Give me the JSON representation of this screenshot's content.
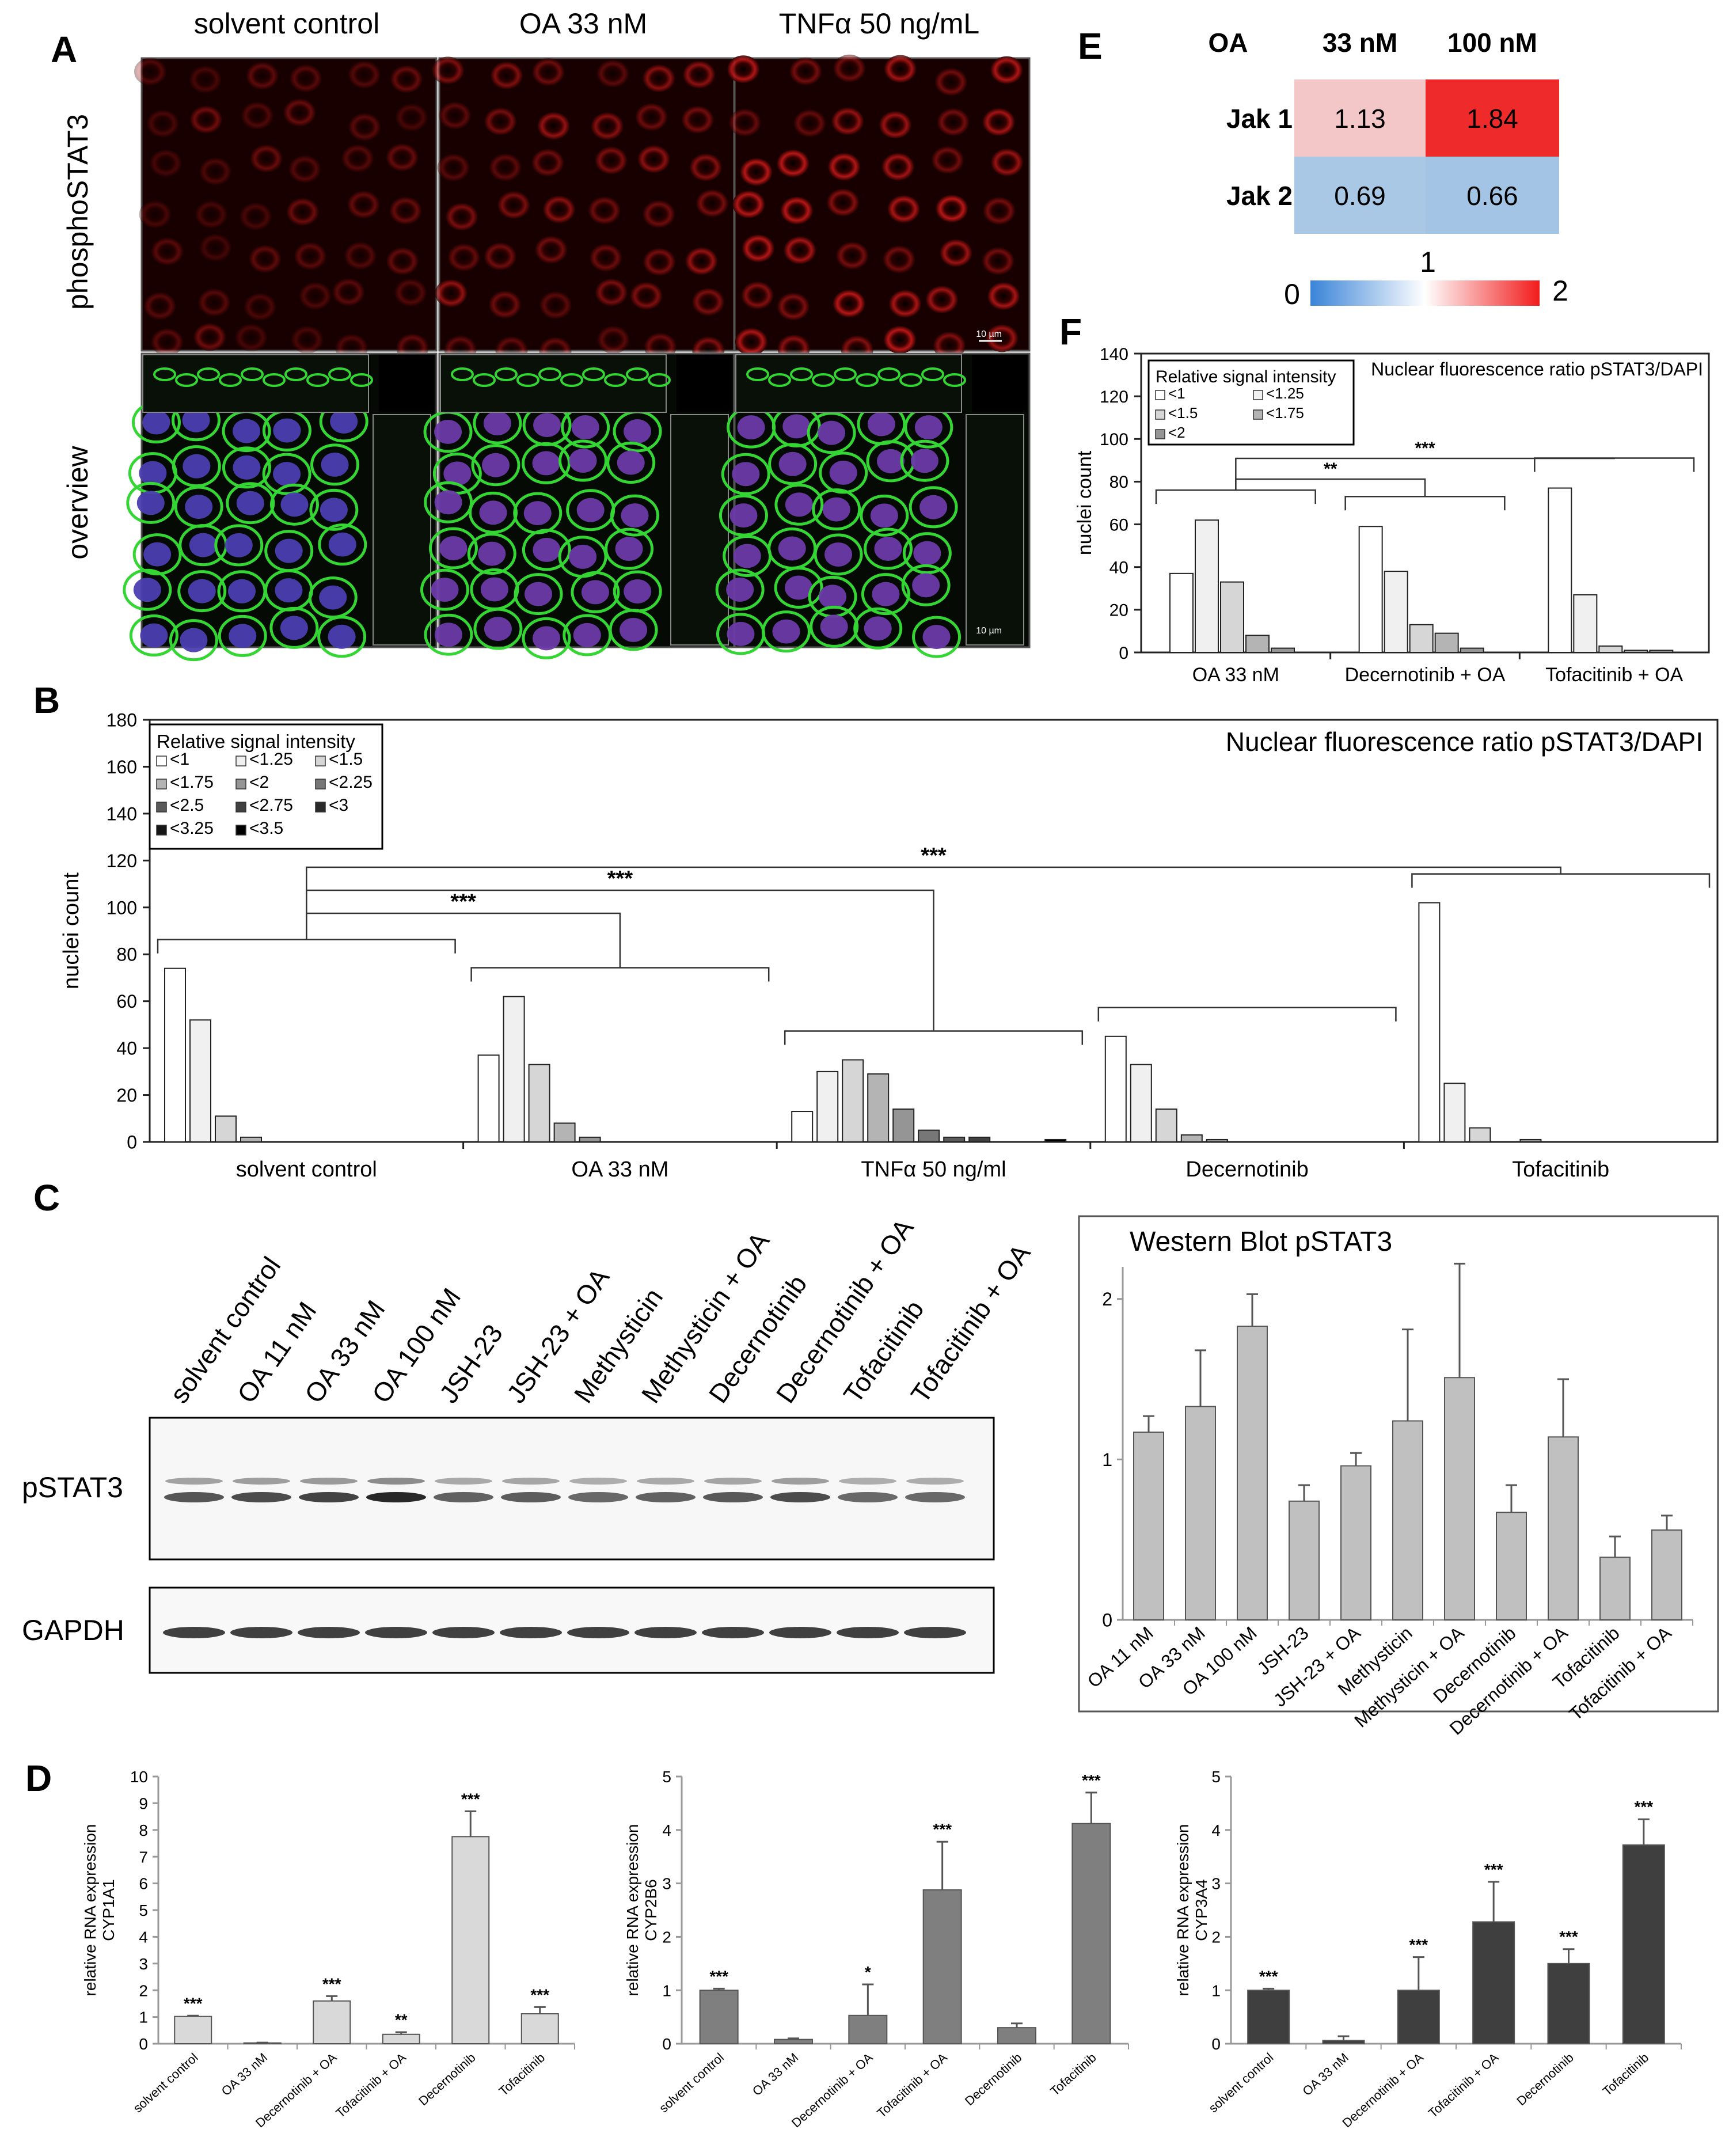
{
  "panels": {
    "A": {
      "letter": "A",
      "columns": [
        "solvent control",
        "OA 33 nM",
        "TNFα 50 ng/mL"
      ],
      "rows": [
        "phosphoSTAT3",
        "overview"
      ],
      "scale_label": "10 µm"
    },
    "E": {
      "letter": "E",
      "corner_label": "OA",
      "cols": [
        "33 nM",
        "100 nM"
      ],
      "rows": [
        "Jak 1",
        "Jak 2"
      ],
      "values": [
        [
          "1.13",
          "1.84"
        ],
        [
          "0.69",
          "0.66"
        ]
      ],
      "cell_colors": [
        [
          "#f3c6c8",
          "#ef2a2a"
        ],
        [
          "#a9c8e6",
          "#a3c4e4"
        ]
      ],
      "colorbar": {
        "min": "0",
        "mid": "1",
        "max": "2",
        "low_color": "#3a84d8",
        "mid_color": "#ffffff",
        "high_color": "#f21c1c"
      }
    },
    "B": {
      "letter": "B"
    },
    "C": {
      "letter": "C",
      "lanes": [
        "solvent control",
        "OA 11 nM",
        "OA 33 nM",
        "OA 100 nM",
        "JSH-23",
        "JSH-23 + OA",
        "Methysticin",
        "Methysticin + OA",
        "Decernotinib",
        "Decernotinib + OA",
        "Tofacitinib",
        "Tofacitinib + OA"
      ],
      "blot_labels": [
        "pSTAT3",
        "GAPDH"
      ]
    },
    "D": {
      "letter": "D"
    },
    "F": {
      "letter": "F"
    }
  },
  "chart_data": [
    {
      "id": "F",
      "type": "bar",
      "title": "Nuclear fluorescence ratio pSTAT3/DAPI",
      "ylabel": "nuclei count",
      "ylim": [
        0,
        140
      ],
      "yticks": [
        0,
        20,
        40,
        60,
        80,
        100,
        120,
        140
      ],
      "groups": [
        "OA 33 nM",
        "Decernotinib + OA",
        "Tofacitinib + OA"
      ],
      "series": [
        {
          "name": "<1",
          "color": "#ffffff",
          "values": [
            37,
            59,
            77
          ]
        },
        {
          "name": "<1.25",
          "color": "#f0f0f0",
          "values": [
            62,
            38,
            27
          ]
        },
        {
          "name": "<1.5",
          "color": "#d6d6d6",
          "values": [
            33,
            13,
            3
          ]
        },
        {
          "name": "<1.75",
          "color": "#b4b4b4",
          "values": [
            8,
            9,
            1
          ]
        },
        {
          "name": "<2",
          "color": "#959595",
          "values": [
            2,
            2,
            1
          ]
        }
      ],
      "legend": {
        "title": "Relative signal intensity",
        "placement": "top-left"
      },
      "significance": [
        {
          "label": "**",
          "from": 0,
          "to": 1
        },
        {
          "label": "***",
          "from": 0,
          "to": 2
        }
      ]
    },
    {
      "id": "B",
      "type": "bar",
      "title": "Nuclear fluorescence ratio pSTAT3/DAPI",
      "ylabel": "nuclei count",
      "ylim": [
        0,
        180
      ],
      "yticks": [
        0,
        20,
        40,
        60,
        80,
        100,
        120,
        140,
        160,
        180
      ],
      "groups": [
        "solvent control",
        "OA 33 nM",
        "TNFα 50 ng/ml",
        "Decernotinib",
        "Tofacitinib"
      ],
      "series": [
        {
          "name": "<1",
          "color": "#ffffff",
          "values": [
            74,
            37,
            13,
            45,
            102
          ]
        },
        {
          "name": "<1.25",
          "color": "#f0f0f0",
          "values": [
            52,
            62,
            30,
            33,
            25
          ]
        },
        {
          "name": "<1.5",
          "color": "#d6d6d6",
          "values": [
            11,
            33,
            35,
            14,
            6
          ]
        },
        {
          "name": "<1.75",
          "color": "#b4b4b4",
          "values": [
            2,
            8,
            29,
            3,
            0
          ]
        },
        {
          "name": "<2",
          "color": "#959595",
          "values": [
            0,
            2,
            14,
            1,
            1
          ]
        },
        {
          "name": "<2.25",
          "color": "#777777",
          "values": [
            0,
            0,
            5,
            0,
            0
          ]
        },
        {
          "name": "<2.5",
          "color": "#5a5a5a",
          "values": [
            0,
            0,
            2,
            0,
            0
          ]
        },
        {
          "name": "<2.75",
          "color": "#404040",
          "values": [
            0,
            0,
            2,
            0,
            0
          ]
        },
        {
          "name": "<3",
          "color": "#2a2a2a",
          "values": [
            0,
            0,
            0,
            0,
            0
          ]
        },
        {
          "name": "<3.25",
          "color": "#161616",
          "values": [
            0,
            0,
            0,
            0,
            0
          ]
        },
        {
          "name": "<3.5",
          "color": "#000000",
          "values": [
            0,
            0,
            1,
            0,
            0
          ]
        }
      ],
      "legend": {
        "title": "Relative signal intensity",
        "placement": "top-left"
      },
      "significance": [
        {
          "label": "***",
          "from": 0,
          "to": 1
        },
        {
          "label": "***",
          "from": 0,
          "to": 2
        },
        {
          "label": "***",
          "from": 0,
          "to": 4
        }
      ]
    },
    {
      "id": "C-quant",
      "type": "bar",
      "title": "Western Blot pSTAT3",
      "ylim": [
        0,
        2.2
      ],
      "yticks": [
        0,
        1,
        2
      ],
      "categories": [
        "OA 11 nM",
        "OA 33 nM",
        "OA 100 nM",
        "JSH-23",
        "JSH-23 + OA",
        "Methysticin",
        "Methysticin + OA",
        "Decernotinib",
        "Decernotinib + OA",
        "Tofacitinib",
        "Tofacitinib + OA"
      ],
      "values": [
        1.17,
        1.33,
        1.83,
        0.74,
        0.96,
        1.24,
        1.51,
        0.67,
        1.14,
        0.39,
        0.56
      ],
      "errors": [
        0.1,
        0.35,
        0.2,
        0.1,
        0.08,
        0.57,
        0.71,
        0.17,
        0.36,
        0.13,
        0.09
      ],
      "color": "#c0c0c0"
    },
    {
      "id": "D1",
      "type": "bar",
      "ylabel": "relative RNA expression CYP1A1",
      "ylim": [
        0,
        10
      ],
      "yticks": [
        0,
        1,
        2,
        3,
        4,
        5,
        6,
        7,
        8,
        9,
        10
      ],
      "categories": [
        "solvent control",
        "OA 33 nM",
        "Decernotinib + OA",
        "Tofacitinib + OA",
        "Decernotinib",
        "Tofacitinib"
      ],
      "values": [
        1.02,
        0.03,
        1.6,
        0.35,
        7.75,
        1.12
      ],
      "errors": [
        0.03,
        0.01,
        0.18,
        0.08,
        0.95,
        0.25
      ],
      "significance": [
        "***",
        "",
        "***",
        "**",
        "***",
        "***"
      ],
      "color": "#d9d9d9"
    },
    {
      "id": "D2",
      "type": "bar",
      "ylabel": "relative RNA expression CYP2B6",
      "ylim": [
        0,
        5
      ],
      "yticks": [
        0,
        1,
        2,
        3,
        4,
        5
      ],
      "categories": [
        "solvent control",
        "OA 33 nM",
        "Decernotinib + OA",
        "Tofacitinib + OA",
        "Decernotinib",
        "Tofacitinib"
      ],
      "values": [
        1.0,
        0.08,
        0.53,
        2.88,
        0.3,
        4.12
      ],
      "errors": [
        0.03,
        0.02,
        0.58,
        0.9,
        0.08,
        0.58
      ],
      "significance": [
        "***",
        "",
        "*",
        "***",
        "",
        "***"
      ],
      "color": "#7f7f7f"
    },
    {
      "id": "D3",
      "type": "bar",
      "ylabel": "relative RNA expression CYP3A4",
      "ylim": [
        0,
        5
      ],
      "yticks": [
        0,
        1,
        2,
        3,
        4,
        5
      ],
      "categories": [
        "solvent control",
        "OA 33 nM",
        "Decernotinib + OA",
        "Tofacitinib + OA",
        "Decernotinib",
        "Tofacitinib"
      ],
      "values": [
        1.0,
        0.06,
        1.0,
        2.28,
        1.5,
        3.72
      ],
      "errors": [
        0.03,
        0.08,
        0.62,
        0.75,
        0.27,
        0.48
      ],
      "significance": [
        "***",
        "",
        "***",
        "***",
        "***",
        "***"
      ],
      "color": "#3f3f3f"
    }
  ]
}
